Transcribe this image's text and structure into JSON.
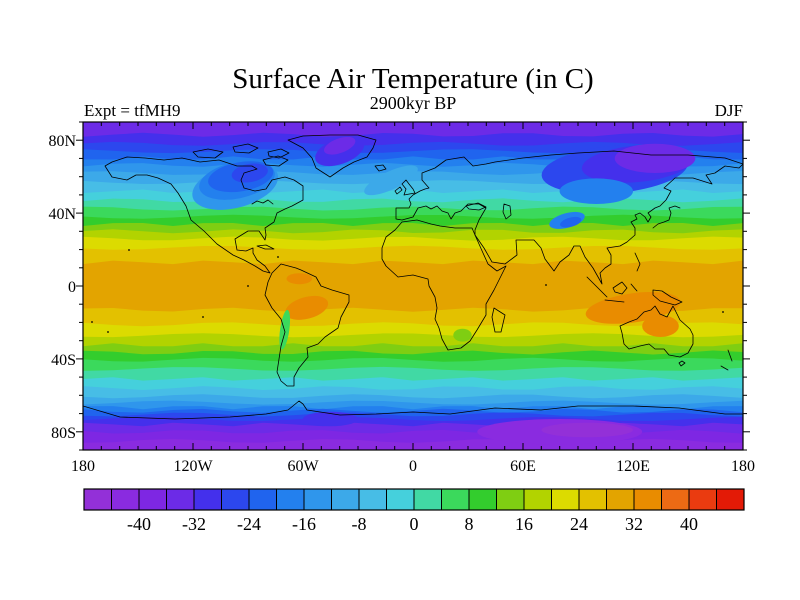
{
  "header": {
    "title": "Surface Air Temperature (in C)",
    "subtitle": "2900kyr BP",
    "experiment_label": "Expt = tfMH9",
    "season_label": "DJF"
  },
  "colors": {
    "background": "#ffffff",
    "text": "#000000",
    "coastline": "#000000",
    "frame": "#000000"
  },
  "chart_data": {
    "type": "heatmap",
    "subtype": "filled-contour-world-map",
    "projection": "equirectangular",
    "title": "Surface Air Temperature (in C)",
    "subtitle": "2900kyr BP",
    "experiment": "Expt = tfMH9",
    "season": "DJF",
    "units": "degrees C",
    "x_axis": {
      "range_deg": [
        -180,
        180
      ],
      "tick_lons": [
        -180,
        -120,
        -60,
        0,
        60,
        120,
        180
      ],
      "tick_labels": [
        "180",
        "120W",
        "60W",
        "0",
        "60E",
        "120E",
        "180"
      ],
      "minor_tick_step_deg": 10
    },
    "y_axis": {
      "range_deg": [
        -90,
        90
      ],
      "tick_lats": [
        80,
        40,
        0,
        -40,
        -80
      ],
      "tick_labels": [
        "80N",
        "40N",
        "0",
        "40S",
        "80S"
      ],
      "minor_tick_step_deg": 10
    },
    "colorbar": {
      "min": -48,
      "max": 48,
      "cell_step": 4,
      "tick_values": [
        -40,
        -32,
        -24,
        -16,
        -8,
        0,
        8,
        16,
        24,
        32,
        40
      ],
      "tick_labels": [
        "-40",
        "-32",
        "-24",
        "-16",
        "-8",
        "0",
        "8",
        "16",
        "24",
        "32",
        "40"
      ],
      "colors": [
        "#9330D8",
        "#8A2BE0",
        "#7E27E3",
        "#6C2BE7",
        "#4430EC",
        "#2C47EE",
        "#2064EE",
        "#2380EE",
        "#2F96EC",
        "#3CA9E9",
        "#47BDE6",
        "#45D0DC",
        "#41D9A4",
        "#3BD95C",
        "#33CD2D",
        "#7FCE12",
        "#B2D300",
        "#DCDB00",
        "#E3C100",
        "#E3A400",
        "#E98C00",
        "#ED6A14",
        "#EA3B10",
        "#E31A06"
      ]
    },
    "zonal_bands": [
      [
        90,
        4
      ],
      [
        83,
        5
      ],
      [
        78,
        6
      ],
      [
        74,
        7
      ],
      [
        70,
        8
      ],
      [
        66.5,
        9
      ],
      [
        62,
        10
      ],
      [
        57,
        11
      ],
      [
        52,
        12
      ],
      [
        47,
        13
      ],
      [
        42.5,
        14
      ],
      [
        38,
        15
      ],
      [
        34,
        16
      ],
      [
        30,
        17
      ],
      [
        26,
        18
      ],
      [
        21,
        19
      ],
      [
        13,
        20
      ],
      [
        -13,
        19
      ],
      [
        -21,
        18
      ],
      [
        -27,
        17
      ],
      [
        -32.5,
        16
      ],
      [
        -36.5,
        15
      ],
      [
        -40.5,
        14
      ],
      [
        -45.5,
        13
      ],
      [
        -51,
        12
      ],
      [
        -56,
        11
      ],
      [
        -60.5,
        10
      ],
      [
        -64,
        9
      ],
      [
        -66.5,
        8
      ],
      [
        -68.5,
        7
      ],
      [
        -70.5,
        6
      ],
      [
        -73,
        5
      ],
      [
        -76,
        4
      ],
      [
        -80,
        3
      ],
      [
        -85,
        2
      ]
    ],
    "anomalies": [
      [
        -97,
        55,
        24,
        12,
        -15,
        9
      ],
      [
        -96,
        58,
        21,
        10,
        -12,
        8
      ],
      [
        -94,
        60,
        18,
        8,
        -10,
        7
      ],
      [
        -89,
        62,
        10,
        5,
        -10,
        6
      ],
      [
        -40,
        74,
        14,
        7,
        -20,
        5
      ],
      [
        -40,
        77,
        9,
        4,
        -20,
        4
      ],
      [
        -12,
        58,
        16,
        5,
        -25,
        10
      ],
      [
        110,
        64,
        40,
        13,
        -5,
        6
      ],
      [
        122,
        67,
        30,
        10,
        -5,
        5
      ],
      [
        132,
        70,
        22,
        8,
        0,
        4
      ],
      [
        100,
        52,
        20,
        7,
        0,
        8
      ],
      [
        84,
        36,
        10,
        4,
        -15,
        8
      ],
      [
        86,
        35,
        6,
        2.5,
        -15,
        7
      ],
      [
        -58,
        -12,
        12,
        6,
        -15,
        21
      ],
      [
        -62,
        4,
        7,
        3,
        0,
        21
      ],
      [
        120,
        -12,
        26,
        8,
        -8,
        21
      ],
      [
        135,
        -22,
        10,
        6,
        0,
        21
      ],
      [
        -70,
        -24,
        2.5,
        11,
        8,
        14
      ],
      [
        27,
        -27,
        5,
        3.5,
        0,
        16
      ],
      [
        80,
        -80,
        45,
        7,
        0,
        2
      ],
      [
        95,
        -79,
        25,
        4,
        0,
        1
      ],
      [
        -45,
        -73,
        15,
        4,
        0,
        5
      ]
    ]
  }
}
